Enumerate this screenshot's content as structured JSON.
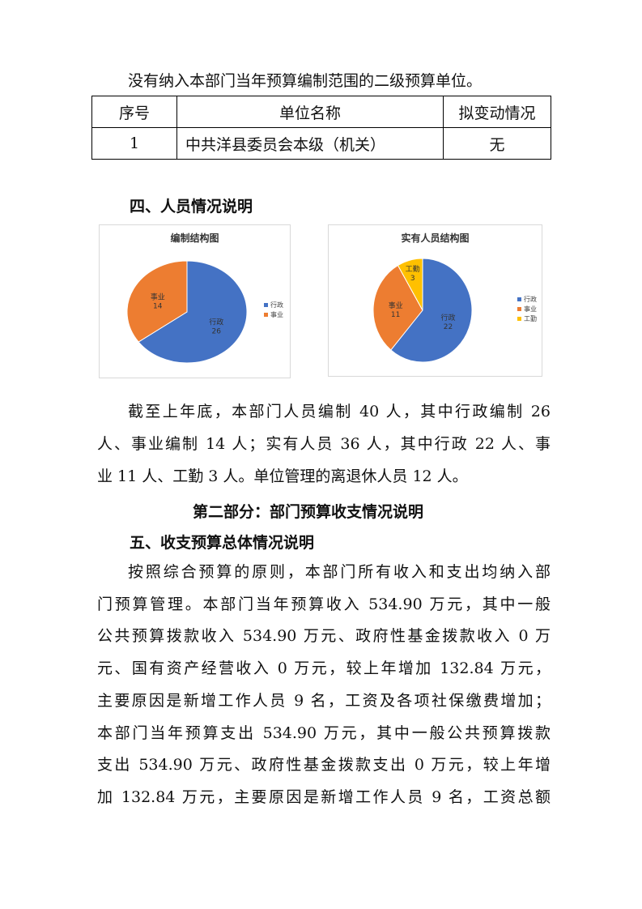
{
  "intro_line": "没有纳入本部门当年预算编制范围的二级预算单位。",
  "table": {
    "headers": [
      "序号",
      "单位名称",
      "拟变动情况"
    ],
    "rows": [
      [
        "1",
        "中共洋县委员会本级（机关）",
        "无"
      ]
    ]
  },
  "section4_title": "四、人员情况说明",
  "colors": {
    "行政": "#4472c4",
    "事业": "#ed7d31",
    "工勤": "#ffc000"
  },
  "chart_data": [
    {
      "type": "pie",
      "title": "编制结构图",
      "categories": [
        "行政",
        "事业"
      ],
      "values": [
        26,
        14
      ],
      "legend": [
        "行政",
        "事业"
      ],
      "legend_position": "right"
    },
    {
      "type": "pie",
      "title": "实有人员结构图",
      "categories": [
        "行政",
        "事业",
        "工勤"
      ],
      "values": [
        22,
        11,
        3
      ],
      "legend": [
        "行政",
        "事业",
        "工勤"
      ],
      "legend_position": "right"
    }
  ],
  "para1": [
    "截至上年底，本部门人员编制 40 人，其中行政编制 26",
    "人、事业编制 14 人；实有人员 36 人，其中行政 22 人、事",
    "业 11 人、工勤 3 人。单位管理的离退休人员 12 人。"
  ],
  "part2_title": "第二部分：部门预算收支情况说明",
  "section5_title": "五、收支预算总体情况说明",
  "para2": [
    "按照综合预算的原则，本部门所有收入和支出均纳入部",
    "门预算管理。本部门当年预算收入 534.90 万元，其中一般",
    "公共预算拨款收入 534.90 万元、政府性基金拨款收入 0 万",
    "元、国有资产经营收入 0 万元，较上年增加 132.84 万元，",
    "主要原因是新增工作人员 9 名，工资及各项社保缴费增加；",
    "本部门当年预算支出 534.90 万元，其中一般公共预算拨款",
    "支出 534.90 万元、政府性基金拨款支出 0 万元，较上年增",
    "加 132.84 万元，主要原因是新增工作人员 9 名，工资总额"
  ]
}
